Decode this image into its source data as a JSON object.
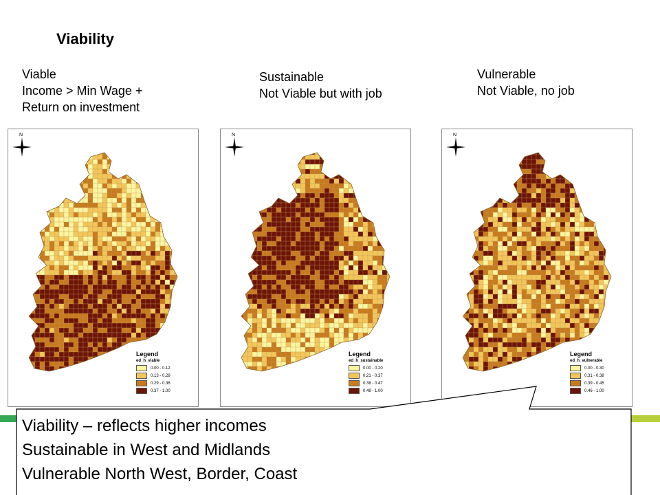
{
  "title": "Viability",
  "captions": {
    "viable": [
      "Viable",
      "Income > Min Wage +",
      "Return on investment"
    ],
    "sustainable": [
      "Sustainable",
      "Not Viable but with job"
    ],
    "vulnerable": [
      "Vulnerable",
      "Not Viable, no job"
    ]
  },
  "maps": [
    {
      "legend_title": "Legend",
      "field": "ed_h_viable",
      "classes": [
        {
          "label": "0.00 - 0.12",
          "color": "#fdf5a0"
        },
        {
          "label": "0.13 - 0.28",
          "color": "#f3c65a"
        },
        {
          "label": "0.29 - 0.36",
          "color": "#c87a1e"
        },
        {
          "label": "0.37 - 1.00",
          "color": "#6e1406"
        }
      ]
    },
    {
      "legend_title": "Legend",
      "field": "ed_h_sustainable",
      "classes": [
        {
          "label": "0.00 - 0.20",
          "color": "#fdf5a0"
        },
        {
          "label": "0.21 - 0.37",
          "color": "#f3c65a"
        },
        {
          "label": "0.38 - 0.47",
          "color": "#c87a1e"
        },
        {
          "label": "0.48 - 1.00",
          "color": "#6e1406"
        }
      ]
    },
    {
      "legend_title": "Legend",
      "field": "ed_h_vulnerable",
      "classes": [
        {
          "label": "0.00 - 0.30",
          "color": "#fdf5a0"
        },
        {
          "label": "0.31 - 0.38",
          "color": "#f3c65a"
        },
        {
          "label": "0.39 - 0.45",
          "color": "#c87a1e"
        },
        {
          "label": "0.46 - 1.00",
          "color": "#6e1406"
        }
      ]
    }
  ],
  "north_label": "N",
  "callout_lines": [
    "Viability – reflects higher incomes",
    "Sustainable in West and Midlands",
    "Vulnerable North West, Border, Coast"
  ],
  "accent_colors": {
    "left_bar": "#34a853",
    "right_bar": "#b7cf3a"
  }
}
